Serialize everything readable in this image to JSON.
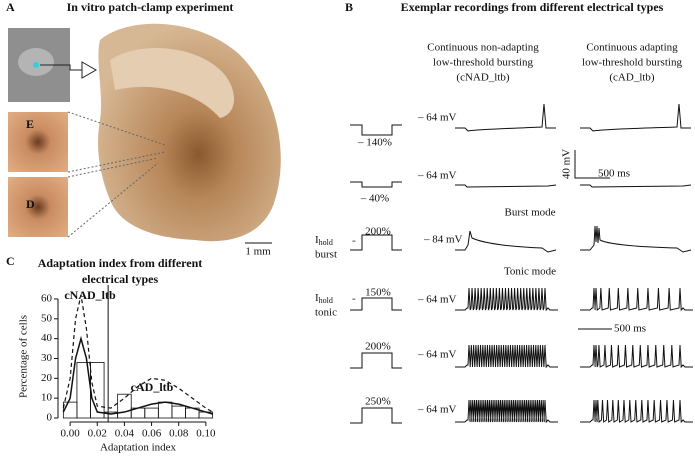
{
  "panel_a": {
    "letter": "A",
    "title": "In vitro patch-clamp experiment",
    "cell_labels": [
      "E",
      "D"
    ],
    "scale_bar": "1 mm"
  },
  "panel_b": {
    "letter": "B",
    "title": "Exemplar recordings from different electrical types",
    "columns": [
      [
        "Continuous non-adapting",
        "low-threshold bursting",
        "(cNAD_ltb)"
      ],
      [
        "Continuous adapting",
        "low-threshold bursting",
        "(cAD_ltb)"
      ]
    ],
    "section_labels": [
      "Burst mode",
      "Tonic mode"
    ],
    "current_steps": [
      "– 140%",
      "– 40%",
      "200%",
      "150%",
      "200%",
      "250%"
    ],
    "holding_labels": [
      {
        "main": "I",
        "sub": "hold",
        "suffix": "burst"
      },
      {
        "main": "I",
        "sub": "hold",
        "suffix": "tonic"
      }
    ],
    "voltages": [
      "– 64 mV",
      "– 64 mV",
      "– 84 mV",
      "– 64 mV",
      "– 64 mV",
      "– 64 mV"
    ],
    "scale_bars": [
      "40 mV",
      "500 ms",
      "500 ms"
    ]
  },
  "chart_data": {
    "type": "histogram",
    "title": [
      "Adaptation index from different",
      "electrical types"
    ],
    "letter": "C",
    "x_label": "Adaptation index",
    "y_label": "Percentage of cells",
    "xlim": [
      -0.006,
      0.106
    ],
    "ylim": [
      0,
      62
    ],
    "xticks": [
      {
        "value": 0,
        "label": "0.00"
      },
      0.02,
      0.04,
      0.06,
      0.08,
      {
        "value": 0.1,
        "label": "0.10"
      }
    ],
    "yticks": [
      0,
      10,
      20,
      30,
      40,
      50,
      60
    ],
    "threshold": 0.028,
    "series": [
      {
        "name": "cNAD_ltb",
        "bins": [
          -0.005,
          0.005,
          0.015,
          0.025,
          0.035
        ],
        "values": [
          8,
          28,
          28,
          3
        ]
      },
      {
        "name": "cAD_ltb",
        "bins": [
          0.035,
          0.045,
          0.055,
          0.065,
          0.075,
          0.085,
          0.095,
          0.105
        ],
        "values": [
          12,
          5,
          5,
          8,
          6,
          5,
          3
        ]
      }
    ],
    "curves": [
      {
        "style": "solid",
        "x": [
          -0.005,
          0,
          0.004,
          0.008,
          0.012,
          0.016,
          0.02,
          0.03,
          0.04,
          0.05,
          0.06,
          0.07,
          0.08,
          0.09,
          0.1,
          0.105
        ],
        "values": [
          3,
          10,
          30,
          40,
          30,
          10,
          3,
          2,
          3,
          5,
          7,
          8,
          7,
          5,
          3,
          2
        ]
      },
      {
        "style": "dashed",
        "x": [
          -0.005,
          0,
          0.004,
          0.008,
          0.012,
          0.016,
          0.02,
          0.03,
          0.04,
          0.05,
          0.06,
          0.07,
          0.08,
          0.09,
          0.1,
          0.105
        ],
        "values": [
          5,
          20,
          50,
          62,
          45,
          18,
          6,
          5,
          10,
          16,
          20,
          19,
          15,
          10,
          5,
          3
        ]
      }
    ]
  }
}
